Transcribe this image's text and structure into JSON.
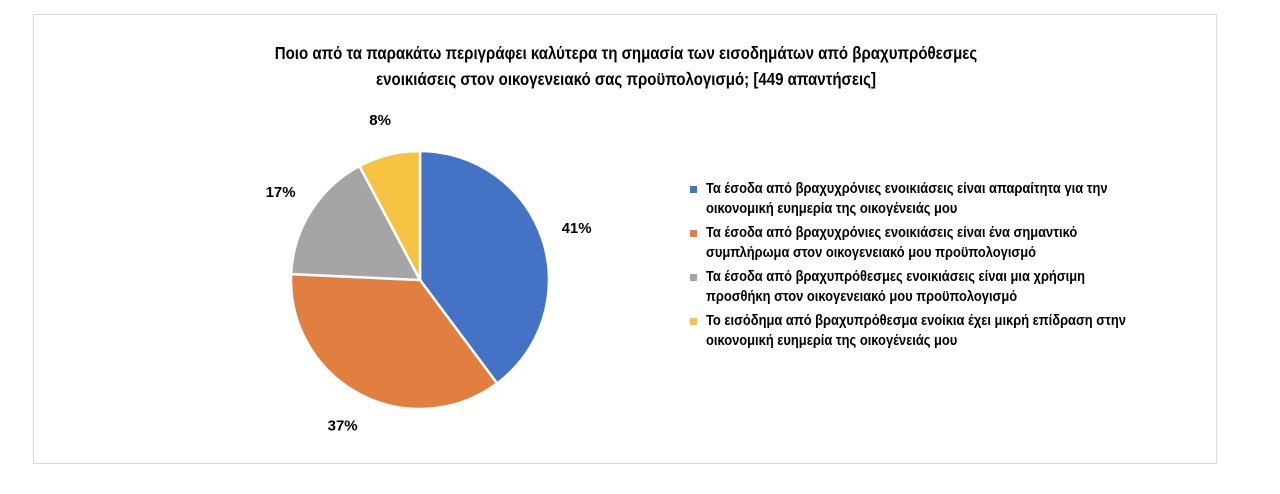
{
  "chart_data": {
    "type": "pie",
    "title_lines": [
      "Ποιο από τα παρακάτω περιγράφει καλύτερα τη σημασία των εισοδημάτων από βραχυπρόθεσμες",
      "ενοικιάσεις στον οικογενειακό σας προϋπολογισμό; [449 απαντήσεις]"
    ],
    "slices": [
      {
        "label": "Τα έσοδα από βραχυχρόνιες ενοικιάσεις είναι απαραίτητα για την οικονομική ευημερία της οικογένειάς μου",
        "label_lines": [
          "Τα έσοδα από βραχυχρόνιες ενοικιάσεις είναι απαραίτητα για την",
          "οικονομική ευημερία της οικογένειάς μου"
        ],
        "value": 41,
        "value_label": "41%",
        "color": "#4472C4"
      },
      {
        "label": "Τα έσοδα από βραχυχρόνιες ενοικιάσεις είναι ένα σημαντικό συμπλήρωμα στον οικογενειακό μου προϋπολογισμό",
        "label_lines": [
          "Τα έσοδα από βραχυχρόνιες ενοικιάσεις είναι ένα σημαντικό",
          "συμπλήρωμα στον οικογενειακό μου προϋπολογισμό"
        ],
        "value": 37,
        "value_label": "37%",
        "color": "#E07F3F"
      },
      {
        "label": "Τα έσοδα από βραχυπρόθεσμες ενοικιάσεις είναι μια χρήσιμη προσθήκη στον οικογενειακό μου προϋπολογισμό",
        "label_lines": [
          "Τα έσοδα από βραχυπρόθεσμες ενοικιάσεις είναι μια χρήσιμη",
          "προσθήκη στον οικογενειακό μου προϋπολογισμό"
        ],
        "value": 17,
        "value_label": "17%",
        "color": "#A5A5A5"
      },
      {
        "label": "Το εισόδημα από βραχυπρόθεσμα ενοίκια έχει μικρή επίδραση στην οικονομική ευημερία της οικογένειάς μου",
        "label_lines": [
          "Το εισόδημα από βραχυπρόθεσμα ενοίκια έχει μικρή επίδραση στην",
          "οικονομική ευημερία της οικογένειάς μου"
        ],
        "value": 8,
        "value_label": "8%",
        "color": "#F5C242"
      }
    ],
    "legend_position": "right"
  }
}
